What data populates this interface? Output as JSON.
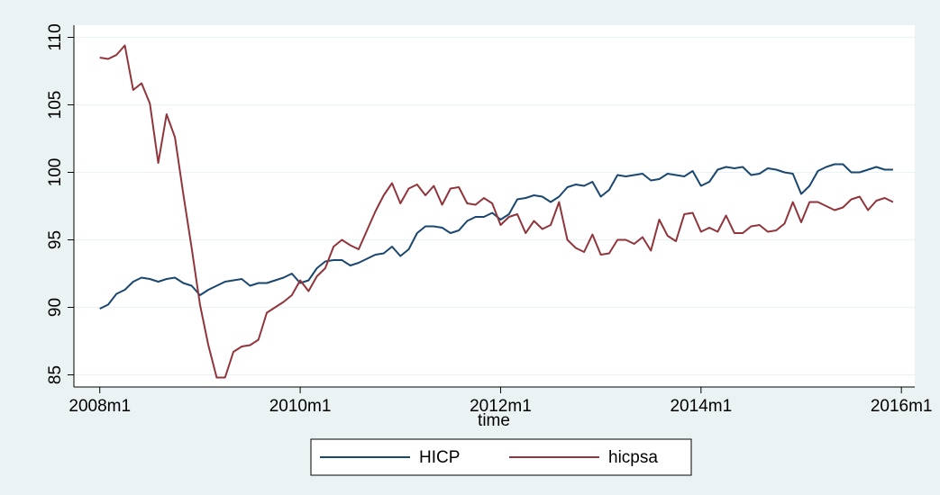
{
  "chart_data": {
    "type": "line",
    "x": [
      576,
      577,
      578,
      579,
      580,
      581,
      582,
      583,
      584,
      585,
      586,
      587,
      588,
      589,
      590,
      591,
      592,
      593,
      594,
      595,
      596,
      597,
      598,
      599,
      600,
      601,
      602,
      603,
      604,
      605,
      606,
      607,
      608,
      609,
      610,
      611,
      612,
      613,
      614,
      615,
      616,
      617,
      618,
      619,
      620,
      621,
      622,
      623,
      624,
      625,
      626,
      627,
      628,
      629,
      630,
      631,
      632,
      633,
      634,
      635,
      636,
      637,
      638,
      639,
      640,
      641,
      642,
      643,
      644,
      645,
      646,
      647,
      648,
      649,
      650,
      651,
      652,
      653,
      654,
      655,
      656,
      657,
      658,
      659,
      660,
      661,
      662,
      663,
      664,
      665,
      666,
      667,
      668,
      669,
      670,
      671
    ],
    "xlabel": "time",
    "xlim": [
      572.9,
      673.6
    ],
    "xticks": [
      {
        "value": 576,
        "label": "2008m1"
      },
      {
        "value": 600,
        "label": "2010m1"
      },
      {
        "value": 624,
        "label": "2012m1"
      },
      {
        "value": 648,
        "label": "2014m1"
      },
      {
        "value": 672,
        "label": "2016m1"
      }
    ],
    "ylim": [
      84.1,
      110.9
    ],
    "yticks": [
      85,
      90,
      95,
      100,
      105,
      110
    ],
    "grid": true,
    "legend": "bottom",
    "series": [
      {
        "name": "HICP",
        "color": "#1a476f",
        "values": [
          89.9,
          90.2,
          91.0,
          91.3,
          91.9,
          92.2,
          92.1,
          91.9,
          92.1,
          92.2,
          91.8,
          91.6,
          90.9,
          91.3,
          91.6,
          91.9,
          92.0,
          92.1,
          91.6,
          91.8,
          91.8,
          92.0,
          92.2,
          92.5,
          91.8,
          92.0,
          92.9,
          93.4,
          93.5,
          93.5,
          93.1,
          93.3,
          93.6,
          93.9,
          94.0,
          94.5,
          93.8,
          94.3,
          95.5,
          96.0,
          96.0,
          95.9,
          95.5,
          95.7,
          96.4,
          96.7,
          96.7,
          97.0,
          96.5,
          96.9,
          98.0,
          98.1,
          98.3,
          98.2,
          97.8,
          98.2,
          98.9,
          99.1,
          99.0,
          99.3,
          98.2,
          98.7,
          99.8,
          99.7,
          99.8,
          99.9,
          99.4,
          99.5,
          99.9,
          99.8,
          99.7,
          100.1,
          99.0,
          99.3,
          100.2,
          100.4,
          100.3,
          100.4,
          99.8,
          99.9,
          100.3,
          100.2,
          100.0,
          99.9,
          98.4,
          99.0,
          100.1,
          100.4,
          100.6,
          100.6,
          100.0,
          100.0,
          100.2,
          100.4,
          100.2,
          100.2
        ]
      },
      {
        "name": "hicpsa",
        "color": "#90353b",
        "values": [
          108.5,
          108.4,
          108.7,
          109.4,
          106.1,
          106.6,
          105.1,
          100.7,
          104.3,
          102.6,
          98.4,
          94.4,
          90.2,
          87.2,
          84.8,
          84.8,
          86.7,
          87.1,
          87.2,
          87.6,
          89.6,
          90.0,
          90.4,
          90.9,
          92.0,
          91.2,
          92.3,
          92.9,
          94.5,
          95.0,
          94.6,
          94.3,
          95.7,
          97.1,
          98.3,
          99.2,
          97.7,
          98.8,
          99.1,
          98.3,
          99.0,
          97.6,
          98.8,
          98.9,
          97.7,
          97.6,
          98.1,
          97.7,
          96.1,
          96.7,
          96.9,
          95.5,
          96.4,
          95.8,
          96.1,
          97.8,
          95.0,
          94.4,
          94.1,
          95.4,
          93.9,
          94.0,
          95.0,
          95.0,
          94.7,
          95.2,
          94.2,
          96.5,
          95.3,
          94.9,
          96.9,
          97.0,
          95.6,
          95.9,
          95.6,
          96.8,
          95.5,
          95.5,
          96.0,
          96.1,
          95.6,
          95.7,
          96.2,
          97.8,
          96.3,
          97.8,
          97.8,
          97.5,
          97.2,
          97.4,
          98.0,
          98.2,
          97.2,
          97.9,
          98.1,
          97.8
        ]
      }
    ]
  }
}
